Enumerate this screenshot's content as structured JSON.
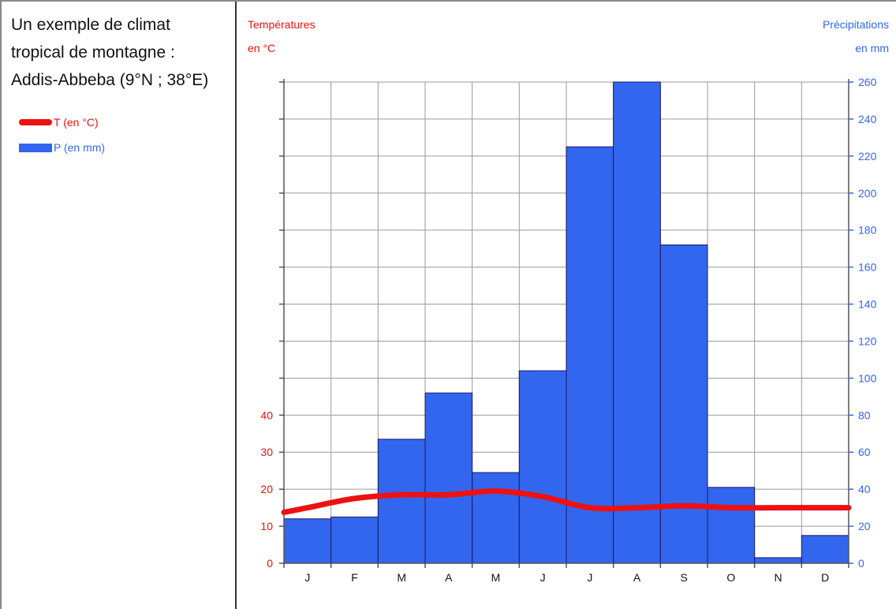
{
  "legend_panel": {
    "title_lines": [
      "Un exemple de climat",
      "tropical de montagne :",
      "Addis-Abbeba (9°N ; 38°E)"
    ],
    "legend_temperature": "T (en °C)",
    "legend_precipitation": "P (en mm)"
  },
  "colors": {
    "temperature": "#ee1111",
    "precipitation": "#3366ee",
    "bar_outline": "#1a1a66",
    "grid": "#9a9a9a",
    "axis": "#555555",
    "frame": "#333333"
  },
  "chart_data": {
    "type": "bar",
    "categories": [
      "J",
      "F",
      "M",
      "A",
      "M",
      "J",
      "J",
      "A",
      "S",
      "O",
      "N",
      "D"
    ],
    "series": [
      {
        "name": "P (en mm)",
        "type": "bar",
        "axis": "right",
        "values": [
          24,
          25,
          67,
          92,
          49,
          104,
          225,
          260,
          172,
          41,
          3,
          15
        ]
      },
      {
        "name": "T (en °C)",
        "type": "line",
        "axis": "left",
        "values": [
          15,
          17.5,
          18.5,
          18.5,
          19.5,
          18,
          15,
          15,
          15.5,
          15,
          15,
          15
        ]
      }
    ],
    "y_left": {
      "label_line1": "Températures",
      "label_line2": "en °C",
      "ticks": [
        0,
        10,
        20,
        30,
        40
      ],
      "range": [
        0,
        130
      ]
    },
    "y_right": {
      "label_line1": "Précipitations",
      "label_line2": "en mm",
      "ticks": [
        0,
        20,
        40,
        60,
        80,
        100,
        120,
        140,
        160,
        180,
        200,
        220,
        240,
        260
      ],
      "range": [
        0,
        260
      ]
    },
    "grid": true
  }
}
